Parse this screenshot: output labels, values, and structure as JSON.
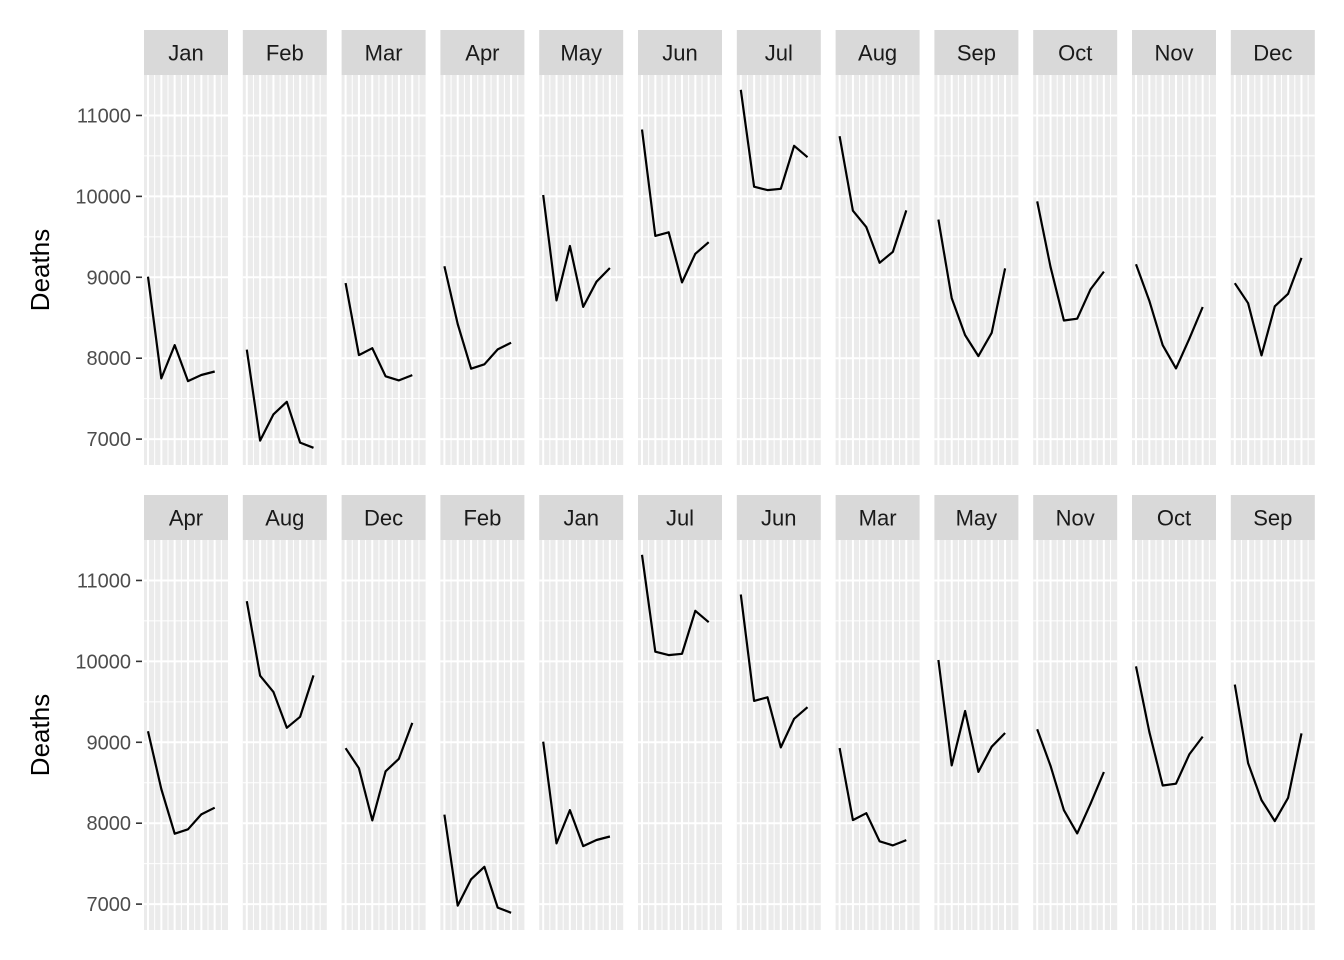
{
  "chart_data": [
    {
      "type": "line",
      "ylabel": "Deaths",
      "ylim": [
        6680,
        11500
      ],
      "yticks": [
        7000,
        8000,
        9000,
        10000,
        11000
      ],
      "grid": true,
      "x_years": 6,
      "panels": [
        {
          "label": "Jan",
          "values": [
            9007,
            7750,
            8162,
            7717,
            7792,
            7836
          ]
        },
        {
          "label": "Feb",
          "values": [
            8106,
            6981,
            7306,
            7461,
            6957,
            6892
          ]
        },
        {
          "label": "Mar",
          "values": [
            8928,
            8038,
            8124,
            7776,
            7725,
            7791
          ]
        },
        {
          "label": "Apr",
          "values": [
            9137,
            8422,
            7870,
            7925,
            8109,
            8192
          ]
        },
        {
          "label": "May",
          "values": [
            10017,
            8714,
            9387,
            8634,
            8945,
            9115
          ]
        },
        {
          "label": "Jun",
          "values": [
            10826,
            9512,
            9556,
            8937,
            9290,
            9434
          ]
        },
        {
          "label": "Jul",
          "values": [
            11317,
            10120,
            10078,
            10093,
            10625,
            10484
          ]
        },
        {
          "label": "Aug",
          "values": [
            10744,
            9823,
            9620,
            9179,
            9315,
            9827
          ]
        },
        {
          "label": "Sep",
          "values": [
            9713,
            8743,
            8285,
            8026,
            8314,
            9110
          ]
        },
        {
          "label": "Oct",
          "values": [
            9938,
            9129,
            8466,
            8488,
            8850,
            9070
          ]
        },
        {
          "label": "Nov",
          "values": [
            9161,
            8710,
            8160,
            7874,
            8240,
            8633
          ]
        },
        {
          "label": "Dec",
          "values": [
            8927,
            8680,
            8034,
            8641,
            8796,
            9240
          ]
        }
      ]
    },
    {
      "type": "line",
      "ylabel": "Deaths",
      "ylim": [
        6680,
        11500
      ],
      "yticks": [
        7000,
        8000,
        9000,
        10000,
        11000
      ],
      "grid": true,
      "x_years": 6,
      "panels": [
        {
          "label": "Apr",
          "values": [
            9137,
            8422,
            7870,
            7925,
            8109,
            8192
          ]
        },
        {
          "label": "Aug",
          "values": [
            10744,
            9823,
            9620,
            9179,
            9315,
            9827
          ]
        },
        {
          "label": "Dec",
          "values": [
            8927,
            8680,
            8034,
            8641,
            8796,
            9240
          ]
        },
        {
          "label": "Feb",
          "values": [
            8106,
            6981,
            7306,
            7461,
            6957,
            6892
          ]
        },
        {
          "label": "Jan",
          "values": [
            9007,
            7750,
            8162,
            7717,
            7792,
            7836
          ]
        },
        {
          "label": "Jul",
          "values": [
            11317,
            10120,
            10078,
            10093,
            10625,
            10484
          ]
        },
        {
          "label": "Jun",
          "values": [
            10826,
            9512,
            9556,
            8937,
            9290,
            9434
          ]
        },
        {
          "label": "Mar",
          "values": [
            8928,
            8038,
            8124,
            7776,
            7725,
            7791
          ]
        },
        {
          "label": "May",
          "values": [
            10017,
            8714,
            9387,
            8634,
            8945,
            9115
          ]
        },
        {
          "label": "Nov",
          "values": [
            9161,
            8710,
            8160,
            7874,
            8240,
            8633
          ]
        },
        {
          "label": "Oct",
          "values": [
            9938,
            9129,
            8466,
            8488,
            8850,
            9070
          ]
        },
        {
          "label": "Sep",
          "values": [
            9713,
            8743,
            8285,
            8026,
            8314,
            9110
          ]
        }
      ]
    }
  ]
}
